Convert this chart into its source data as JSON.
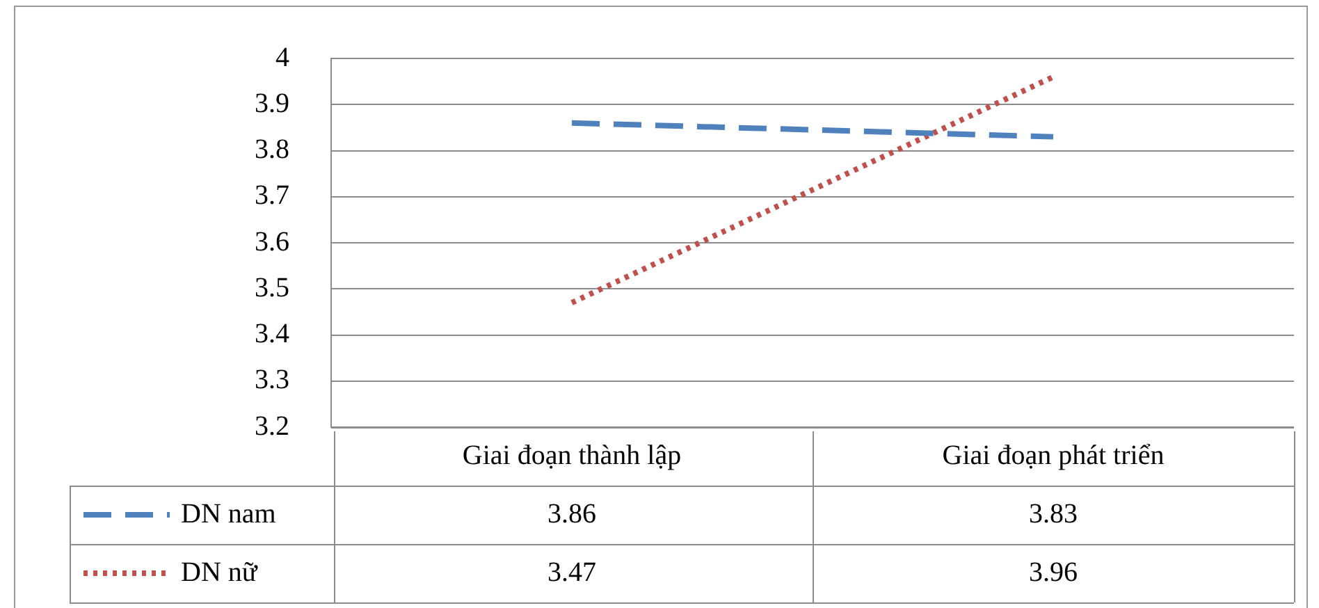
{
  "chart_data": {
    "type": "line",
    "categories": [
      "Giai đoạn thành lập",
      "Giai đoạn phát triển"
    ],
    "series": [
      {
        "name": "DN nam",
        "color": "#4f81bd",
        "values": [
          3.86,
          3.83
        ],
        "line_style": "dashed"
      },
      {
        "name": "DN nữ",
        "color": "#c0504d",
        "values": [
          3.47,
          3.96
        ],
        "line_style": "dotted"
      }
    ],
    "ylim": [
      3.2,
      4
    ],
    "yticks": [
      3.2,
      3.3,
      3.4,
      3.5,
      3.6,
      3.7,
      3.8,
      3.9,
      4
    ],
    "grid": "y",
    "legend": "bottom",
    "marker": "none",
    "data_labels": true
  }
}
